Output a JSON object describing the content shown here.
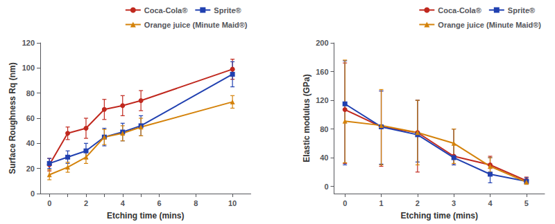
{
  "chart_data": [
    {
      "type": "line",
      "xlabel": "Etching time (mins)",
      "ylabel": "Surface Roughness Rq (nm)",
      "xlim": [
        -0.5,
        11
      ],
      "ylim": [
        0,
        120
      ],
      "xticks": [
        0,
        {
          "value": 1,
          "label": ""
        },
        2,
        {
          "value": 3,
          "label": ""
        },
        4,
        {
          "value": 5,
          "label": ""
        },
        6,
        8,
        10
      ],
      "yticks": [
        0,
        20,
        40,
        60,
        80,
        100,
        120
      ],
      "grid": false,
      "legend": "upper right",
      "series": [
        {
          "name": "Coca-Cola®",
          "color": "#c0281e",
          "marker": "o",
          "x": [
            0,
            1,
            2,
            3,
            4,
            5,
            10
          ],
          "values": [
            23,
            48,
            52,
            67,
            70,
            74,
            99
          ],
          "yerr": [
            5,
            5,
            8,
            8,
            8,
            8,
            8
          ]
        },
        {
          "name": "Sprite®",
          "color": "#2040b0",
          "marker": "s",
          "x": [
            0,
            1,
            2,
            3,
            4,
            5,
            10
          ],
          "values": [
            24,
            29,
            34,
            45,
            49,
            54,
            95
          ],
          "yerr": [
            4,
            5,
            6,
            7,
            7,
            8,
            10
          ]
        },
        {
          "name": "Orange juice (Minute Maid®)",
          "color": "#d4820a",
          "marker": "^",
          "x": [
            0,
            1,
            2,
            3,
            4,
            5,
            10
          ],
          "values": [
            15,
            21,
            29,
            45,
            48,
            53,
            73
          ],
          "yerr": [
            4,
            4,
            5,
            6,
            6,
            7,
            5
          ]
        }
      ]
    },
    {
      "type": "line",
      "xlabel": "Etching time (mins)",
      "ylabel": "Elastic modulus (GPa)",
      "xlim": [
        -0.3,
        5.5
      ],
      "ylim": [
        -10,
        200
      ],
      "xticks": [
        0,
        1,
        2,
        3,
        4,
        5
      ],
      "yticks": [
        0,
        40,
        80,
        120,
        160,
        200
      ],
      "grid": false,
      "legend": "upper right",
      "series": [
        {
          "name": "Coca-Cola®",
          "color": "#c0281e",
          "marker": "o",
          "x": [
            0,
            1,
            2,
            3,
            4,
            5
          ],
          "values": [
            107,
            83,
            75,
            42,
            30,
            8
          ],
          "yerr_lo": [
            75,
            55,
            55,
            12,
            5,
            3
          ],
          "yerr_hi": [
            65,
            50,
            45,
            38,
            12,
            5
          ]
        },
        {
          "name": "Sprite®",
          "color": "#2040b0",
          "marker": "s",
          "x": [
            0,
            1,
            2,
            3,
            4,
            5
          ],
          "values": [
            115,
            83,
            72,
            40,
            17,
            7
          ],
          "yerr_lo": [
            85,
            52,
            38,
            10,
            12,
            4
          ],
          "yerr_hi": [
            60,
            50,
            48,
            40,
            23,
            5
          ]
        },
        {
          "name": "Orange juice (Minute Maid®)",
          "color": "#d4820a",
          "marker": "^",
          "x": [
            0,
            1,
            2,
            3,
            4,
            5
          ],
          "values": [
            91,
            85,
            75,
            60,
            28,
            6
          ],
          "yerr_lo": [
            58,
            55,
            45,
            28,
            8,
            3
          ],
          "yerr_hi": [
            85,
            50,
            45,
            20,
            12,
            4
          ]
        }
      ]
    }
  ]
}
